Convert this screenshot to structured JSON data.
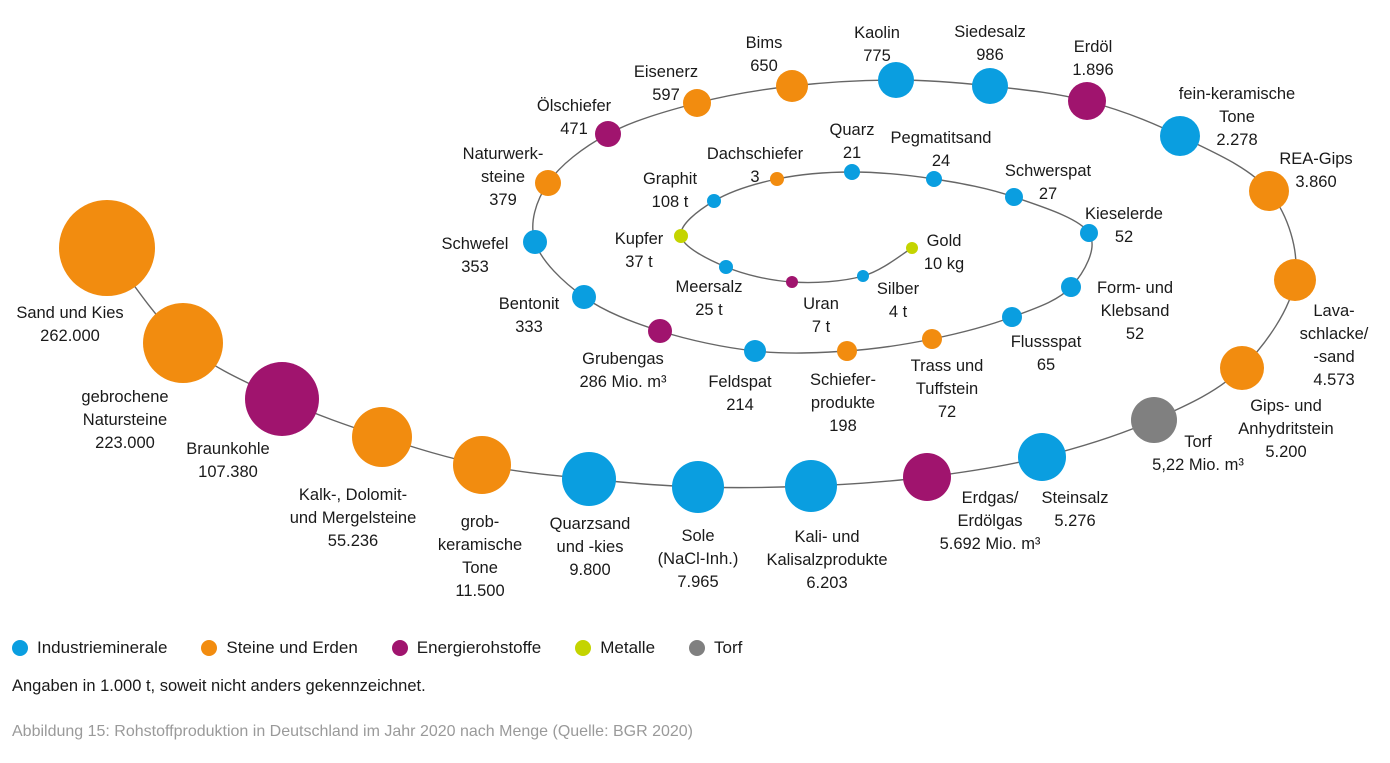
{
  "chart_data": {
    "type": "bubble-spiral",
    "categories": [
      {
        "key": "industrie",
        "name": "Industrieminerale",
        "color": "#0a9ee0"
      },
      {
        "key": "steine",
        "name": "Steine und Erden",
        "color": "#f28c0f"
      },
      {
        "key": "energie",
        "name": "Energierohstoffe",
        "color": "#a0146e"
      },
      {
        "key": "metalle",
        "name": "Metalle",
        "color": "#c4d400"
      },
      {
        "key": "torf",
        "name": "Torf",
        "color": "#808080"
      }
    ],
    "items": [
      {
        "name_lines": [
          "Sand und Kies"
        ],
        "value": "262.000",
        "category": "steine"
      },
      {
        "name_lines": [
          "gebrochene",
          "Natursteine"
        ],
        "value": "223.000",
        "category": "steine"
      },
      {
        "name_lines": [
          "Braunkohle"
        ],
        "value": "107.380",
        "category": "energie"
      },
      {
        "name_lines": [
          "Kalk-, Dolomit-",
          "und Mergelsteine"
        ],
        "value": "55.236",
        "category": "steine"
      },
      {
        "name_lines": [
          "grob-",
          "keramische",
          "Tone"
        ],
        "value": "11.500",
        "category": "steine"
      },
      {
        "name_lines": [
          "Quarzsand",
          "und -kies"
        ],
        "value": "9.800",
        "category": "industrie"
      },
      {
        "name_lines": [
          "Sole",
          "(NaCl-Inh.)"
        ],
        "value": "7.965",
        "category": "industrie"
      },
      {
        "name_lines": [
          "Kali- und",
          "Kalisalzprodukte"
        ],
        "value": "6.203",
        "category": "industrie"
      },
      {
        "name_lines": [
          "Erdgas/",
          "Erdölgas"
        ],
        "value": "5.692 Mio. m³",
        "category": "energie"
      },
      {
        "name_lines": [
          "Steinsalz"
        ],
        "value": "5.276",
        "category": "industrie"
      },
      {
        "name_lines": [
          "Torf"
        ],
        "value": "5,22 Mio. m³",
        "category": "torf"
      },
      {
        "name_lines": [
          "Gips- und",
          "Anhydritstein"
        ],
        "value": "5.200",
        "category": "steine"
      },
      {
        "name_lines": [
          "Lava-",
          "schlacke/",
          "-sand"
        ],
        "value": "4.573",
        "category": "steine"
      },
      {
        "name_lines": [
          "REA-Gips"
        ],
        "value": "3.860",
        "category": "steine"
      },
      {
        "name_lines": [
          "fein-keramische",
          "Tone"
        ],
        "value": "2.278",
        "category": "industrie"
      },
      {
        "name_lines": [
          "Erdöl"
        ],
        "value": "1.896",
        "category": "energie"
      },
      {
        "name_lines": [
          "Siedesalz"
        ],
        "value": "986",
        "category": "industrie"
      },
      {
        "name_lines": [
          "Kaolin"
        ],
        "value": "775",
        "category": "industrie"
      },
      {
        "name_lines": [
          "Bims"
        ],
        "value": "650",
        "category": "steine"
      },
      {
        "name_lines": [
          "Eisenerz"
        ],
        "value": "597",
        "category": "steine"
      },
      {
        "name_lines": [
          "Ölschiefer"
        ],
        "value": "471",
        "category": "energie"
      },
      {
        "name_lines": [
          "Naturwerk-",
          "steine"
        ],
        "value": "379",
        "category": "steine"
      },
      {
        "name_lines": [
          "Schwefel"
        ],
        "value": "353",
        "category": "industrie"
      },
      {
        "name_lines": [
          "Bentonit"
        ],
        "value": "333",
        "category": "industrie"
      },
      {
        "name_lines": [
          "Grubengas"
        ],
        "value": "286 Mio. m³",
        "category": "energie"
      },
      {
        "name_lines": [
          "Feldspat"
        ],
        "value": "214",
        "category": "industrie"
      },
      {
        "name_lines": [
          "Schiefer-",
          "produkte"
        ],
        "value": "198",
        "category": "steine"
      },
      {
        "name_lines": [
          "Trass und",
          "Tuffstein"
        ],
        "value": "72",
        "category": "steine"
      },
      {
        "name_lines": [
          "Flussspat"
        ],
        "value": "65",
        "category": "industrie"
      },
      {
        "name_lines": [
          "Form- und",
          "Klebsand"
        ],
        "value": "52",
        "category": "industrie"
      },
      {
        "name_lines": [
          "Kieselerde"
        ],
        "value": "52",
        "category": "industrie"
      },
      {
        "name_lines": [
          "Schwerspat"
        ],
        "value": "27",
        "category": "industrie"
      },
      {
        "name_lines": [
          "Pegmatitsand"
        ],
        "value": "24",
        "category": "industrie"
      },
      {
        "name_lines": [
          "Quarz"
        ],
        "value": "21",
        "category": "industrie"
      },
      {
        "name_lines": [
          "Dachschiefer"
        ],
        "value": "3",
        "category": "steine"
      },
      {
        "name_lines": [
          "Graphit"
        ],
        "value": "108 t",
        "category": "industrie"
      },
      {
        "name_lines": [
          "Kupfer"
        ],
        "value": "37 t",
        "category": "metalle"
      },
      {
        "name_lines": [
          "Meersalz"
        ],
        "value": "25 t",
        "category": "industrie"
      },
      {
        "name_lines": [
          "Uran"
        ],
        "value": "7 t",
        "category": "energie"
      },
      {
        "name_lines": [
          "Silber"
        ],
        "value": "4 t",
        "category": "industrie"
      },
      {
        "name_lines": [
          "Gold"
        ],
        "value": "10 kg",
        "category": "metalle"
      }
    ],
    "note": "Angaben in 1.000 t, soweit nicht anders gekennzeichnet.",
    "caption": "Abbildung 15: Rohstoffproduktion in Deutschland im Jahr 2020 nach Menge (Quelle: BGR 2020)"
  }
}
